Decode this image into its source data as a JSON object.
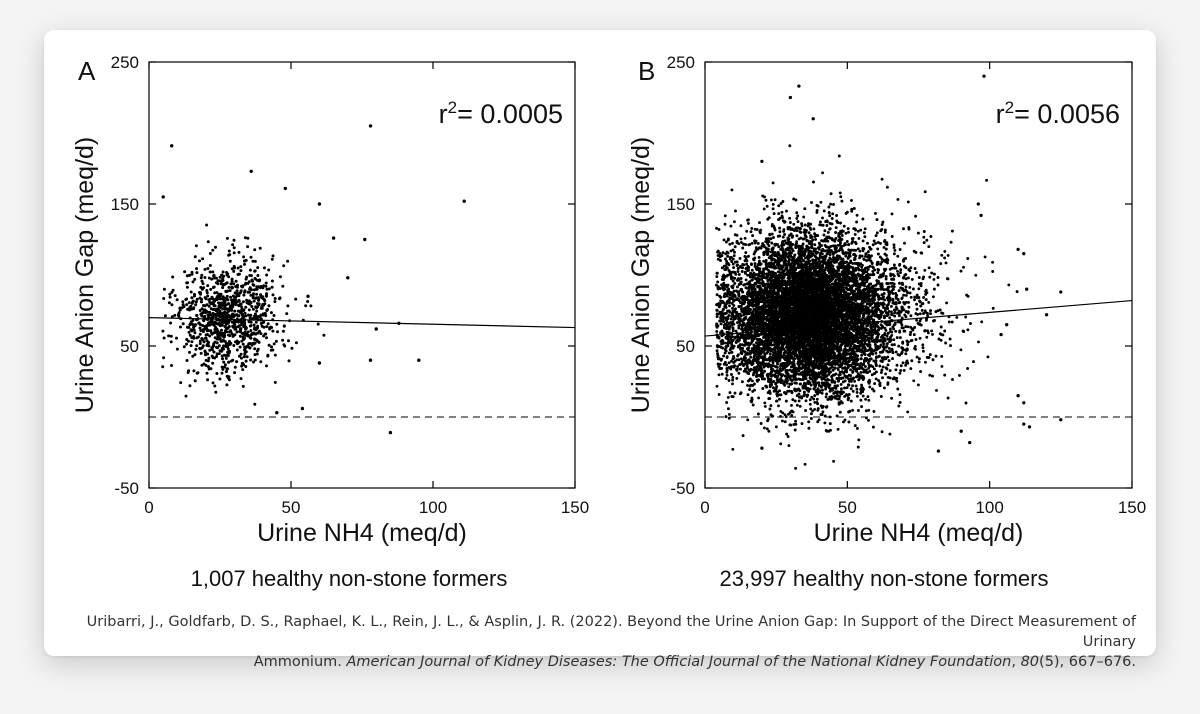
{
  "chart_data": [
    {
      "type": "scatter",
      "panel_label": "A",
      "xlabel": "Urine NH4 (meq/d)",
      "ylabel": "Urine Anion Gap (meq/d)",
      "xlim": [
        0,
        150
      ],
      "ylim": [
        -50,
        250
      ],
      "x_ticks": [
        0,
        50,
        100,
        150
      ],
      "y_ticks": [
        -50,
        50,
        150,
        250
      ],
      "annotation": "= 0.0005",
      "annotation_prefix": "r",
      "annotation_sup": "2",
      "caption": "1,007 healthy non-stone formers",
      "n_points": 1007,
      "cluster": {
        "x_center": 28,
        "x_spread": 9,
        "y_center": 70,
        "y_spread": 20
      },
      "outliers": [
        [
          8,
          191
        ],
        [
          5,
          155
        ],
        [
          36,
          173
        ],
        [
          48,
          161
        ],
        [
          78,
          205
        ],
        [
          111,
          152
        ],
        [
          60,
          150
        ],
        [
          65,
          126
        ],
        [
          76,
          125
        ],
        [
          70,
          98
        ],
        [
          56,
          85
        ],
        [
          45,
          3
        ],
        [
          54,
          6
        ],
        [
          85,
          -11
        ],
        [
          95,
          40
        ],
        [
          88,
          66
        ],
        [
          78,
          40
        ],
        [
          80,
          62
        ],
        [
          60,
          38
        ]
      ],
      "regression": {
        "x": [
          0,
          150
        ],
        "y": [
          70,
          63
        ]
      },
      "zero_line": 0,
      "grid": false,
      "legend": "none"
    },
    {
      "type": "scatter",
      "panel_label": "B",
      "xlabel": "Urine NH4 (meq/d)",
      "ylabel": "Urine Anion Gap (meq/d)",
      "xlim": [
        0,
        150
      ],
      "ylim": [
        -50,
        250
      ],
      "x_ticks": [
        0,
        50,
        100,
        150
      ],
      "y_ticks": [
        -50,
        50,
        150,
        250
      ],
      "annotation": "= 0.0056",
      "annotation_prefix": "r",
      "annotation_sup": "2",
      "caption": "23,997 healthy non-stone formers",
      "n_points": 23997,
      "cluster": {
        "x_center": 33,
        "x_spread": 14,
        "y_center": 72,
        "y_spread": 28
      },
      "outliers": [
        [
          33,
          233
        ],
        [
          98,
          240
        ],
        [
          30,
          225
        ],
        [
          38,
          210
        ],
        [
          20,
          180
        ],
        [
          96,
          150
        ],
        [
          97,
          142
        ],
        [
          110,
          118
        ],
        [
          112,
          115
        ],
        [
          113,
          90
        ],
        [
          125,
          88
        ],
        [
          120,
          72
        ],
        [
          112,
          -5
        ],
        [
          114,
          -7
        ],
        [
          110,
          15
        ],
        [
          112,
          10
        ],
        [
          90,
          -10
        ],
        [
          93,
          -18
        ],
        [
          82,
          -24
        ],
        [
          20,
          -22
        ],
        [
          125,
          -2
        ],
        [
          106,
          65
        ],
        [
          104,
          58
        ]
      ],
      "regression": {
        "x": [
          0,
          150
        ],
        "y": [
          57,
          82
        ]
      },
      "zero_line": 0,
      "grid": false,
      "legend": "none"
    }
  ],
  "citation": {
    "authors": "Uribarri, J., Goldfarb, D. S., Raphael, K. L., Rein, J. L., & Asplin, J. R. (2022). Beyond the Urine Anion Gap: In Support of the Direct Measurement of Urinary",
    "line2_start": "Ammonium. ",
    "journal": "American Journal of Kidney Diseases: The Official Journal of the National Kidney Foundation",
    "comma": ", ",
    "volume": "80",
    "rest": "(5), 667–676."
  },
  "colors": {
    "points": "#000000",
    "axes": "#000000",
    "text": "#111111",
    "citation": "#333333"
  }
}
